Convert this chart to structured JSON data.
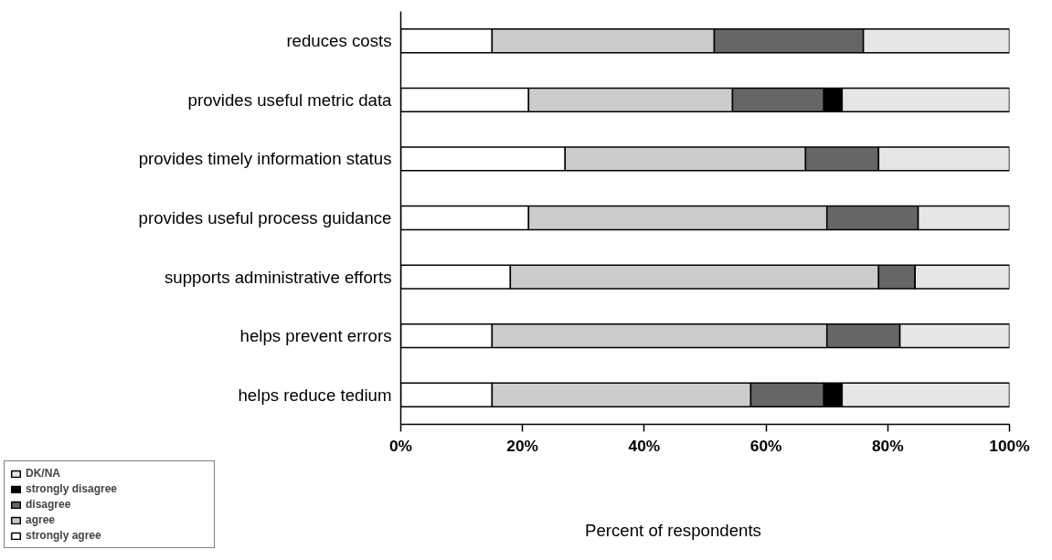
{
  "chart_data": {
    "type": "bar",
    "orientation": "horizontal",
    "stacked": true,
    "xlabel": "Percent of respondents",
    "categories": [
      "reduces costs",
      "provides useful metric data",
      "provides timely information status",
      "provides useful process guidance",
      "supports administrative efforts",
      "helps prevent errors",
      "helps reduce tedium"
    ],
    "series": [
      {
        "name": "strongly agree",
        "color": "#ffffff",
        "values": [
          15,
          21,
          27,
          21,
          18,
          15,
          15
        ]
      },
      {
        "name": "agree",
        "color": "#cccccc",
        "values": [
          36.5,
          33.5,
          39.5,
          49,
          60.5,
          55,
          42.5
        ]
      },
      {
        "name": "disagree",
        "color": "#666666",
        "values": [
          24.5,
          15,
          12,
          15,
          6,
          12,
          12
        ]
      },
      {
        "name": "strongly disagree",
        "color": "#000000",
        "values": [
          0,
          3,
          0,
          0,
          0,
          0,
          3
        ]
      },
      {
        "name": "DK/NA",
        "color": "#e6e6e6",
        "values": [
          24,
          27.5,
          21.5,
          15,
          15.5,
          18,
          27.5
        ]
      }
    ],
    "xlim": [
      0,
      100
    ],
    "xticks": [
      {
        "value": 0,
        "label": "0%"
      },
      {
        "value": 20,
        "label": "20%"
      },
      {
        "value": 40,
        "label": "40%"
      },
      {
        "value": 60,
        "label": "60%"
      },
      {
        "value": 80,
        "label": "80%"
      },
      {
        "value": 100,
        "label": "100%"
      }
    ],
    "grid": false,
    "legend": "bottom left"
  }
}
